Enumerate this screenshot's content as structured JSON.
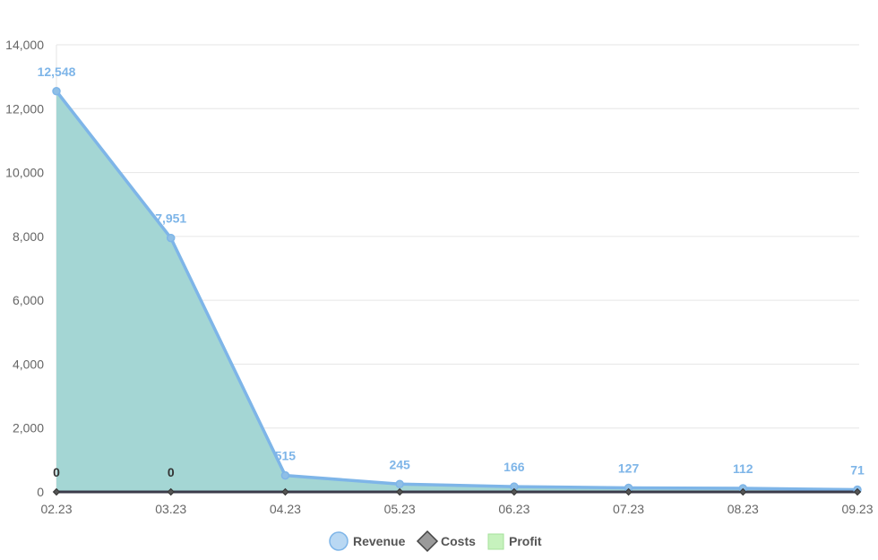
{
  "chart_data": {
    "type": "area",
    "title": "",
    "xlabel": "",
    "ylabel": "",
    "categories": [
      "02.23",
      "03.23",
      "04.23",
      "05.23",
      "06.23",
      "07.23",
      "08.23",
      "09.23"
    ],
    "ylim": [
      0,
      14000
    ],
    "yticks": [
      0,
      2000,
      4000,
      6000,
      8000,
      10000,
      12000,
      14000
    ],
    "ytick_labels": [
      "0",
      "2,000",
      "4,000",
      "6,000",
      "8,000",
      "10,000",
      "12,000",
      "14,000"
    ],
    "grid": true,
    "legend_position": "bottom",
    "series": [
      {
        "name": "Revenue",
        "values": [
          12548,
          7951,
          515,
          245,
          166,
          127,
          112,
          71
        ],
        "labels": [
          "12,548",
          "7,951",
          "515",
          "245",
          "166",
          "127",
          "112",
          "71"
        ],
        "color": "#7eb5e8",
        "marker": "circle"
      },
      {
        "name": "Costs",
        "values": [
          0,
          0,
          0,
          0,
          0,
          0,
          0,
          0
        ],
        "labels": [
          "0",
          "0",
          "",
          "",
          "",
          "",
          "",
          ""
        ],
        "color": "#444444",
        "marker": "diamond"
      },
      {
        "name": "Profit",
        "values": [
          12548,
          7951,
          515,
          245,
          166,
          127,
          112,
          71
        ],
        "labels": [
          "",
          "",
          "",
          "",
          "",
          "",
          "",
          ""
        ],
        "color": "#c6f2bd",
        "marker": "square"
      }
    ],
    "area_fill_color": "#a4d6d4"
  }
}
